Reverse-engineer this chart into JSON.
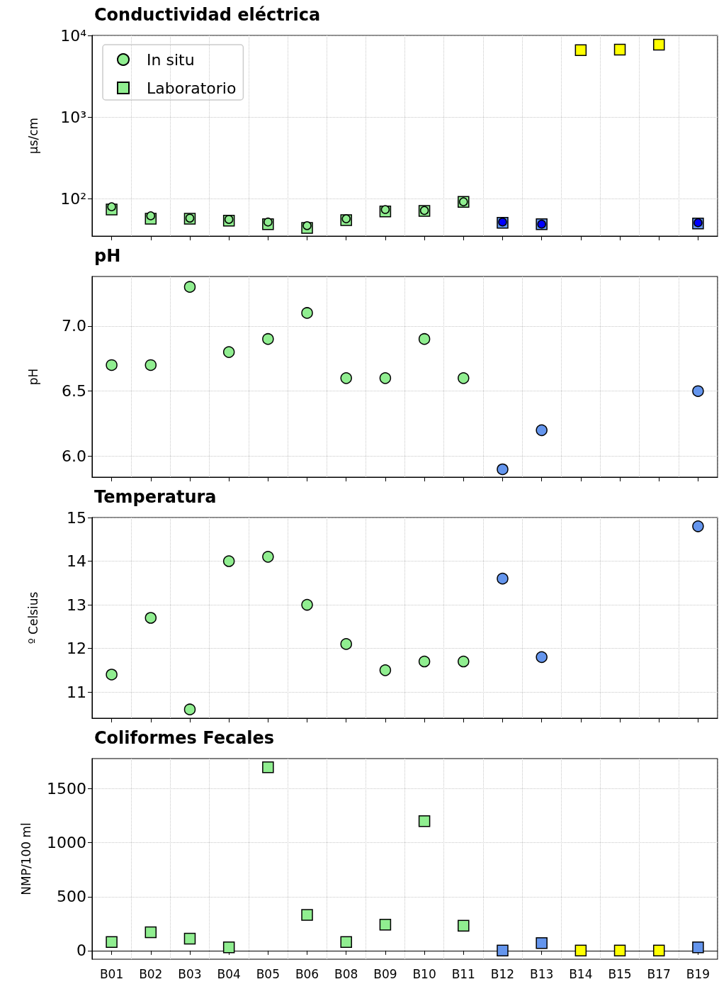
{
  "chart_data": [
    {
      "type": "scatter",
      "title": "Conductividad eléctrica",
      "ylabel": "µs/cm",
      "log": true,
      "grid": true,
      "legend": "top left",
      "tick_labels": "y",
      "categories": [
        null,
        null,
        null,
        null,
        null,
        null,
        null,
        null,
        null,
        null,
        null,
        null,
        null,
        null,
        null,
        null
      ],
      "ylim": [
        35,
        10000
      ],
      "yticks": [
        {
          "value": 100,
          "label": "10²"
        },
        {
          "value": 1000,
          "label": "10³"
        },
        {
          "value": 10000,
          "label": "10⁴"
        }
      ],
      "series": [
        {
          "name": "Laboratorio",
          "marker": "square",
          "colors": [
            "#90ee90",
            "#90ee90",
            "#90ee90",
            "#90ee90",
            "#90ee90",
            "#90ee90",
            "#90ee90",
            "#90ee90",
            "#90ee90",
            "#90ee90",
            "#6495ed",
            "#6495ed",
            "#ffff00",
            "#ffff00",
            "#ffff00",
            "#6495ed"
          ],
          "values": [
            74,
            57,
            57,
            54,
            49,
            44,
            55,
            70,
            71,
            92,
            51,
            49,
            6600,
            6700,
            7700,
            50
          ]
        },
        {
          "name": "In situ",
          "marker": "circle",
          "colors": [
            "#90ee90",
            "#90ee90",
            "#90ee90",
            "#90ee90",
            "#90ee90",
            "#90ee90",
            "#90ee90",
            "#90ee90",
            "#90ee90",
            "#90ee90",
            "#0000ff",
            "#0000ff",
            null,
            null,
            null,
            "#0000ff"
          ],
          "values": [
            80,
            62,
            58,
            56,
            52,
            47,
            57,
            74,
            72,
            92,
            52,
            49,
            null,
            null,
            null,
            51
          ]
        }
      ]
    },
    {
      "type": "scatter",
      "title": "pH",
      "ylabel": "pH",
      "grid": true,
      "tick_labels": "y",
      "categories": [
        null,
        null,
        null,
        null,
        null,
        null,
        null,
        null,
        null,
        null,
        null,
        null,
        null,
        null,
        null,
        null
      ],
      "ylim": [
        5.84,
        7.38
      ],
      "yticks": [
        {
          "value": 6,
          "label": "6.0"
        },
        6.5,
        {
          "value": 7,
          "label": "7.0"
        }
      ],
      "series": [
        {
          "marker": "circle",
          "colors": [
            "#90ee90",
            "#90ee90",
            "#90ee90",
            "#90ee90",
            "#90ee90",
            "#90ee90",
            "#90ee90",
            "#90ee90",
            "#90ee90",
            "#90ee90",
            "#6495ed",
            "#6495ed",
            null,
            null,
            null,
            "#6495ed"
          ],
          "values": [
            6.7,
            6.7,
            7.3,
            6.8,
            6.9,
            7.1,
            6.6,
            6.6,
            6.9,
            6.6,
            5.9,
            6.2,
            null,
            null,
            null,
            6.5
          ]
        }
      ]
    },
    {
      "type": "scatter",
      "title": "Temperatura",
      "ylabel": "º Celsius",
      "grid": true,
      "tick_labels": "y",
      "categories": [
        null,
        null,
        null,
        null,
        null,
        null,
        null,
        null,
        null,
        null,
        null,
        null,
        null,
        null,
        null,
        null
      ],
      "ylim": [
        10.4,
        15
      ],
      "yticks": [
        11,
        12,
        13,
        14,
        15
      ],
      "series": [
        {
          "marker": "circle",
          "colors": [
            "#90ee90",
            "#90ee90",
            "#90ee90",
            "#90ee90",
            "#90ee90",
            "#90ee90",
            "#90ee90",
            "#90ee90",
            "#90ee90",
            "#90ee90",
            "#6495ed",
            "#6495ed",
            null,
            null,
            null,
            "#6495ed"
          ],
          "values": [
            11.4,
            12.7,
            10.6,
            14.0,
            14.1,
            13.0,
            12.1,
            11.5,
            11.7,
            11.7,
            13.6,
            11.8,
            null,
            null,
            null,
            14.8
          ]
        }
      ]
    },
    {
      "type": "scatter",
      "title": "Coliformes Fecales",
      "ylabel": "NMP/100 ml",
      "grid": true,
      "categories": [
        "B01",
        "B02",
        "B03",
        "B04",
        "B05",
        "B06",
        "B08",
        "B09",
        "B10",
        "B11",
        "B12",
        "B13",
        "B14",
        "B15",
        "B17",
        "B19"
      ],
      "ylim": [
        -80,
        1780
      ],
      "yticks": [
        0,
        500,
        1000,
        1500
      ],
      "series": [
        {
          "marker": "square",
          "colors": [
            "#90ee90",
            "#90ee90",
            "#90ee90",
            "#90ee90",
            "#90ee90",
            "#90ee90",
            "#90ee90",
            "#90ee90",
            "#90ee90",
            "#90ee90",
            "#6495ed",
            "#6495ed",
            "#ffff00",
            "#ffff00",
            "#ffff00",
            "#6495ed"
          ],
          "values": [
            80,
            170,
            110,
            30,
            1700,
            330,
            80,
            240,
            1200,
            230,
            0,
            70,
            0,
            0,
            0,
            30
          ]
        }
      ]
    }
  ]
}
